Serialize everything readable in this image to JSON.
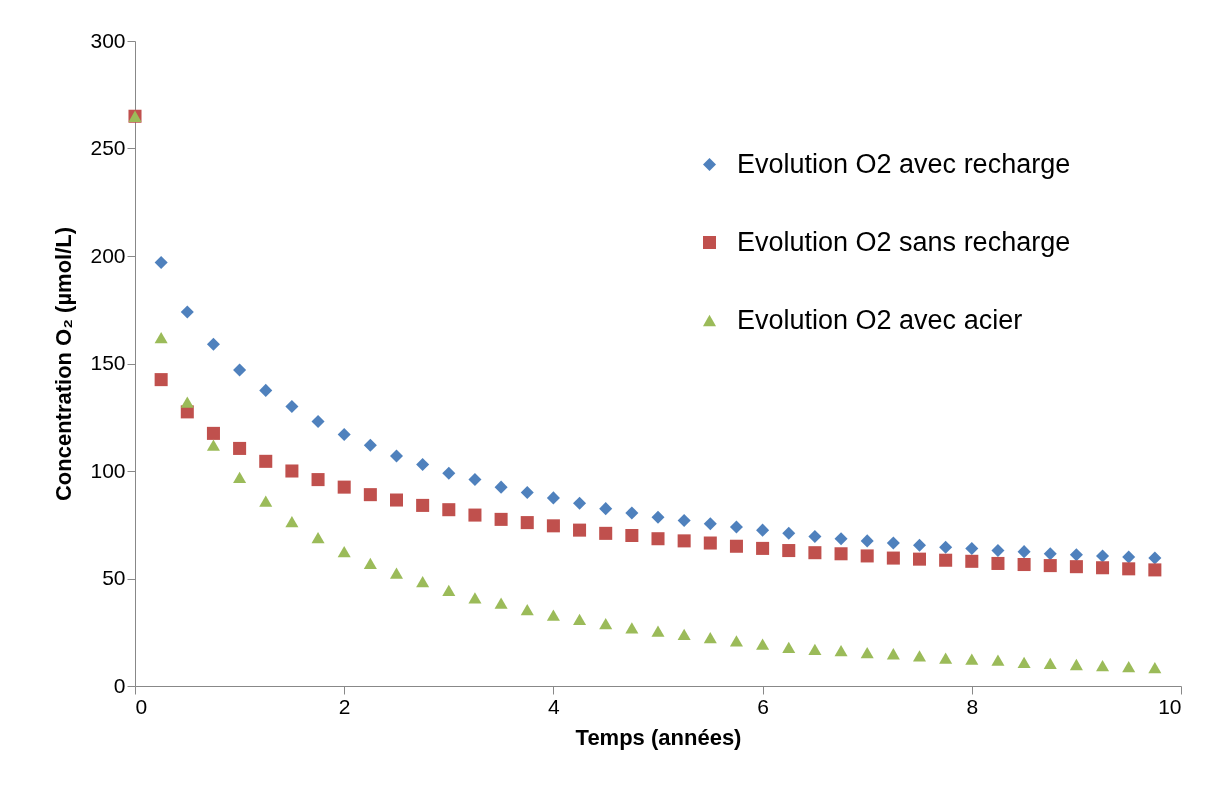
{
  "chart_data": {
    "type": "scatter",
    "xlabel": "Temps (années)",
    "ylabel": "Concentration O₂ (µmol/L)",
    "x": [
      0,
      0.25,
      0.5,
      0.75,
      1,
      1.25,
      1.5,
      1.75,
      2,
      2.25,
      2.5,
      2.75,
      3,
      3.25,
      3.5,
      3.75,
      4,
      4.25,
      4.5,
      4.75,
      5,
      5.25,
      5.5,
      5.75,
      6,
      6.25,
      6.5,
      6.75,
      7,
      7.25,
      7.5,
      7.75,
      8,
      8.25,
      8.5,
      8.75,
      9,
      9.25,
      9.5,
      9.75
    ],
    "series": [
      {
        "name": "Evolution O2 avec recharge",
        "color": "#4f81bd",
        "marker": "diamond",
        "values": [
          null,
          197,
          174,
          159,
          147,
          137.5,
          130,
          123,
          117,
          112,
          107,
          103,
          99,
          96,
          92.5,
          90,
          87.5,
          85,
          82.5,
          80.5,
          78.5,
          77,
          75.5,
          74,
          72.5,
          71,
          69.5,
          68.5,
          67.5,
          66.5,
          65.5,
          64.5,
          64,
          63,
          62.5,
          61.5,
          61,
          60.5,
          60,
          59.5
        ]
      },
      {
        "name": "Evolution O2 sans recharge",
        "color": "#c0504d",
        "marker": "square",
        "values": [
          265,
          142.5,
          127.5,
          117.5,
          110.5,
          104.5,
          100,
          96,
          92.5,
          89,
          86.5,
          84,
          82,
          79.5,
          77.5,
          76,
          74.5,
          72.5,
          71,
          70,
          68.5,
          67.5,
          66.5,
          65,
          64,
          63,
          62,
          61.5,
          60.5,
          59.5,
          59,
          58.5,
          58,
          57,
          56.5,
          56,
          55.5,
          55,
          54.5,
          54
        ]
      },
      {
        "name": "Evolution O2 avec acier",
        "color": "#9bbb59",
        "marker": "triangle",
        "values": [
          265,
          162,
          132,
          112,
          97,
          86,
          76.5,
          69,
          62.5,
          57,
          52.5,
          48.5,
          44.5,
          41,
          38.5,
          35.5,
          33,
          31,
          29,
          27,
          25.5,
          24,
          22.5,
          21,
          19.5,
          18,
          17,
          16.5,
          15.5,
          15,
          14,
          13,
          12.5,
          12,
          11,
          10.5,
          10,
          9.5,
          9,
          8.5
        ]
      }
    ],
    "xlim": [
      0,
      10
    ],
    "xticks": [
      0,
      2,
      4,
      6,
      8,
      10
    ],
    "ylim": [
      0,
      300
    ],
    "yticks": [
      0,
      50,
      100,
      150,
      200,
      250,
      300
    ],
    "grid": false,
    "legend": "top right"
  }
}
